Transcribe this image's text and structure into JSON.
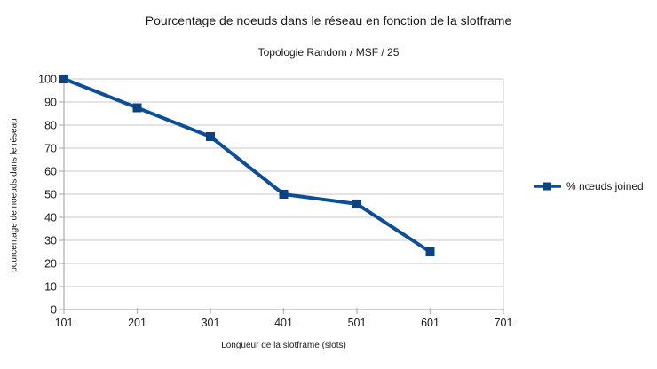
{
  "chart_data": {
    "type": "line",
    "title": "Pourcentage de noeuds dans le réseau en fonction de la slotframe",
    "subtitle": "Topologie Random / MSF / 25",
    "xlabel": "Longueur de la slotframe (slots)",
    "ylabel": "pourcentage de noeuds dans le réseau",
    "x": [
      101,
      201,
      301,
      401,
      501,
      601
    ],
    "series": [
      {
        "name": "% nœuds joined",
        "values": [
          100,
          87.5,
          75,
          50,
          45.8,
          25
        ]
      }
    ],
    "xlim": [
      101,
      701
    ],
    "ylim": [
      0,
      100
    ],
    "x_ticks": [
      "101",
      "201",
      "301",
      "401",
      "501",
      "601",
      "701"
    ],
    "y_ticks": [
      "0",
      "10",
      "20",
      "30",
      "40",
      "50",
      "60",
      "70",
      "80",
      "90",
      "100"
    ],
    "grid": "horizontal-only",
    "legend_position": "right",
    "legend": {
      "label": "% nœuds joined"
    },
    "colors": {
      "line": "#0d4e98",
      "marker": "#0a4286",
      "grid": "#c8c8c8",
      "axis": "#b3b3b3",
      "text": "#1a1a1a"
    }
  }
}
